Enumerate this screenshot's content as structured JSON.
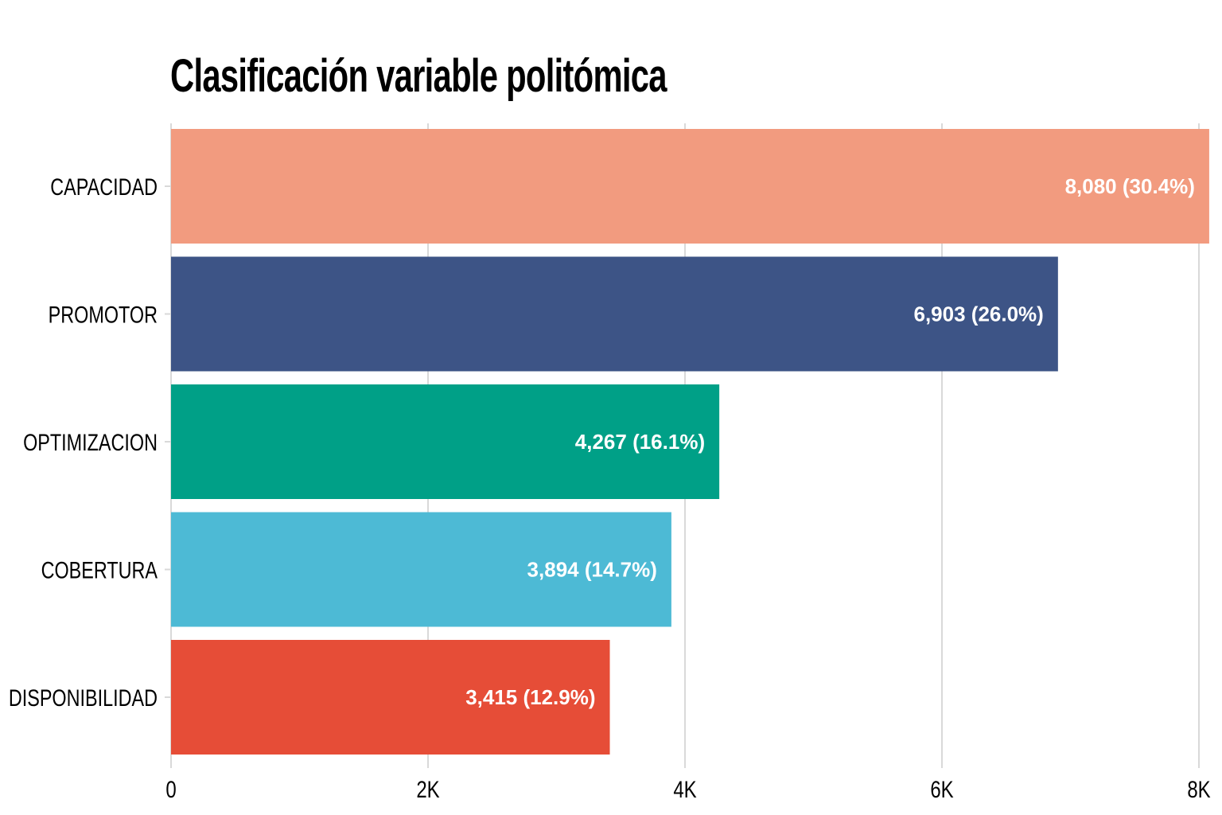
{
  "chart_data": {
    "type": "bar",
    "orientation": "horizontal",
    "title": "Clasificación variable politómica",
    "categories": [
      "CAPACIDAD",
      "PROMOTOR",
      "OPTIMIZACION",
      "COBERTURA",
      "DISPONIBILIDAD"
    ],
    "values": [
      8080,
      6903,
      4267,
      3894,
      3415
    ],
    "data_labels": [
      "8,080 (30.4%)",
      "6,903 (26.0%)",
      "4,267 (16.1%)",
      "3,894 (14.7%)",
      "3,415 (12.9%)"
    ],
    "colors": [
      "#f29b7f",
      "#3d5486",
      "#00a087",
      "#4dbad5",
      "#e64d37"
    ],
    "xlim": [
      0,
      8000
    ],
    "x_ticks": [
      0,
      2000,
      4000,
      6000,
      8000
    ],
    "x_tick_labels": [
      "0",
      "2K",
      "4K",
      "6K",
      "8K"
    ],
    "xlabel": "",
    "ylabel": "",
    "grid": true,
    "grid_color": "#d9d9d9",
    "legend": false
  }
}
